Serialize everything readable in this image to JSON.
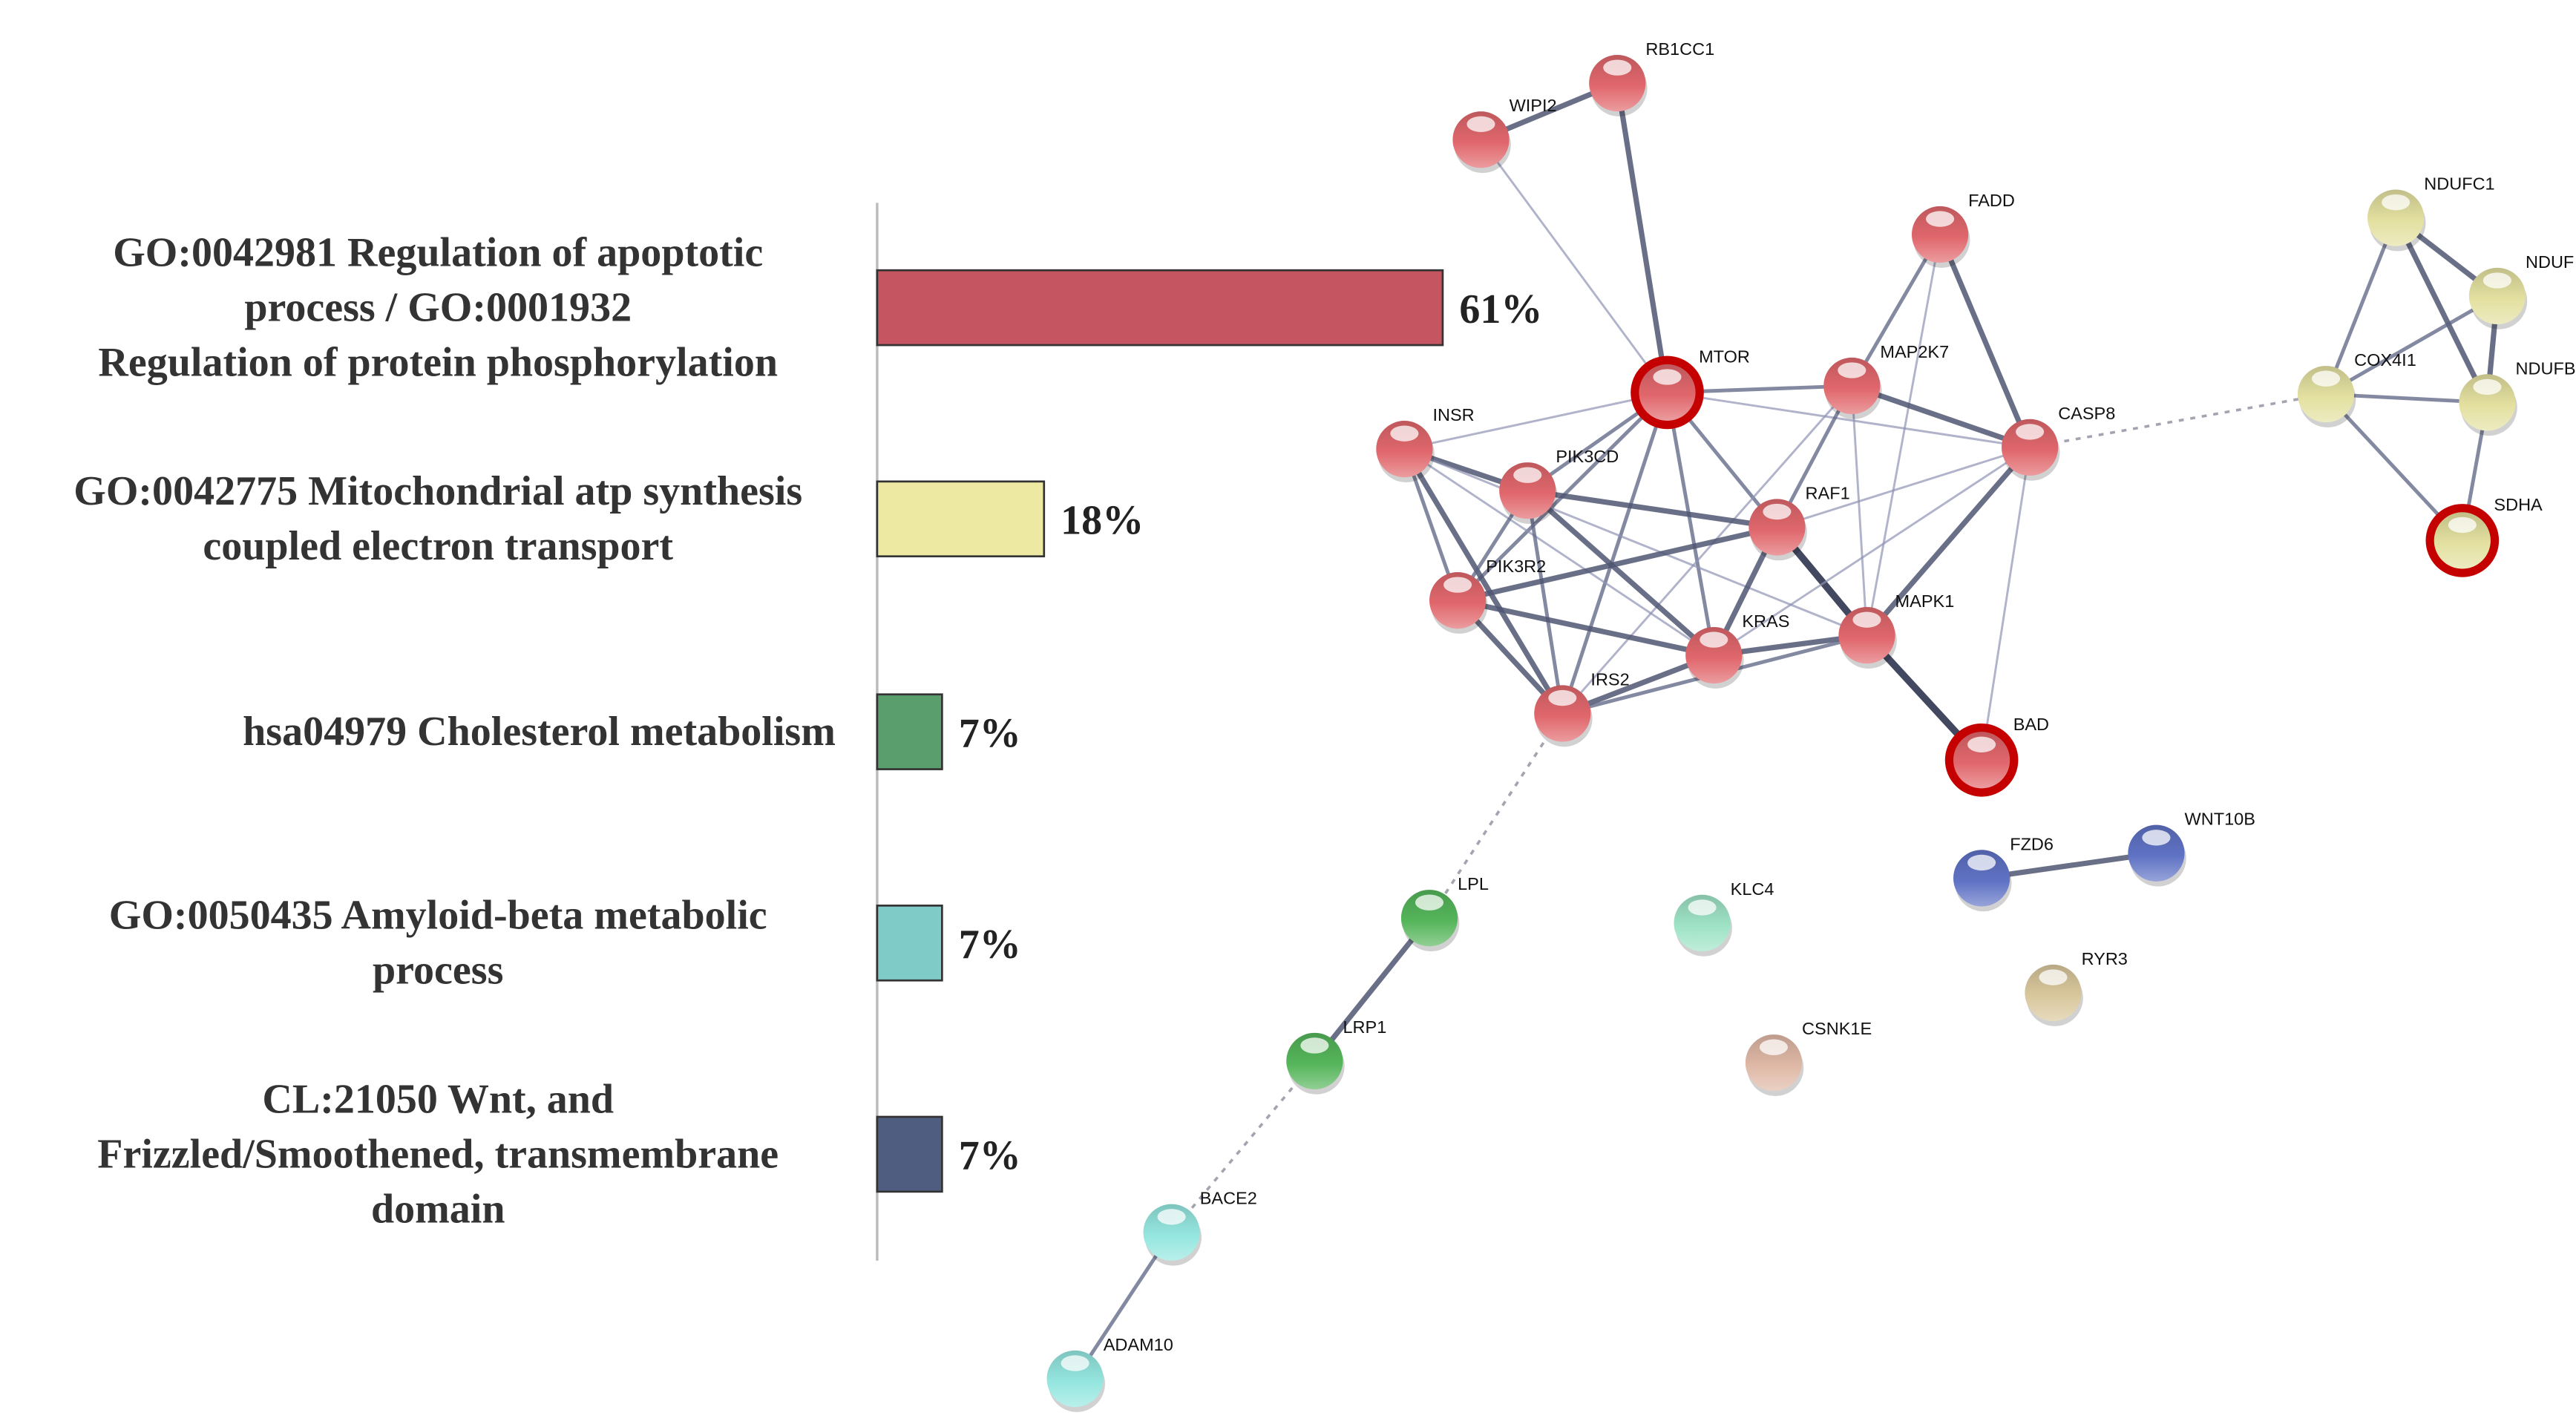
{
  "chart_data": {
    "type": "bar",
    "orientation": "horizontal",
    "categories": [
      {
        "lines": [
          "GO:0042981 Regulation of apoptotic",
          "process / GO:0001932",
          "Regulation of protein phosphorylation"
        ],
        "value": 61,
        "label": "61%",
        "color": "#c55560"
      },
      {
        "lines": [
          "GO:0042775 Mitochondrial atp synthesis",
          "coupled electron transport"
        ],
        "value": 18,
        "label": "18%",
        "color": "#ede9a3"
      },
      {
        "lines": [
          "hsa04979 Cholesterol metabolism"
        ],
        "value": 7,
        "label": "7%",
        "color": "#5a9e6e"
      },
      {
        "lines": [
          "GO:0050435 Amyloid-beta metabolic",
          "process"
        ],
        "value": 7,
        "label": "7%",
        "color": "#7ecbc7"
      },
      {
        "lines": [
          "CL:21050 Wnt, and",
          "Frizzled/Smoothened, transmembrane",
          "domain"
        ],
        "value": 7,
        "label": "7%",
        "color": "#4f5e80"
      }
    ],
    "xlim": [
      0,
      61
    ],
    "grid": false
  },
  "network": {
    "nodes": [
      {
        "id": "RB1CC1",
        "color": "#e0676c"
      },
      {
        "id": "WIPI2",
        "color": "#e0676c"
      },
      {
        "id": "FADD",
        "color": "#e0676c"
      },
      {
        "id": "MTOR",
        "color": "#e0676c",
        "highlight": true
      },
      {
        "id": "MAP2K7",
        "color": "#e0676c"
      },
      {
        "id": "INSR",
        "color": "#e0676c"
      },
      {
        "id": "PIK3CD",
        "color": "#e0676c"
      },
      {
        "id": "CASP8",
        "color": "#e0676c"
      },
      {
        "id": "RAF1",
        "color": "#e0676c"
      },
      {
        "id": "PIK3R2",
        "color": "#e0676c"
      },
      {
        "id": "KRAS",
        "color": "#e0676c"
      },
      {
        "id": "MAPK1",
        "color": "#e0676c"
      },
      {
        "id": "IRS2",
        "color": "#e0676c"
      },
      {
        "id": "BAD",
        "color": "#e0676c",
        "highlight": true
      },
      {
        "id": "NDUFC1",
        "color": "#e3e0a0"
      },
      {
        "id": "NDUF",
        "color": "#e3e0a0"
      },
      {
        "id": "NDUFB",
        "color": "#e3e0a0"
      },
      {
        "id": "COX4I1",
        "color": "#e3e0a0"
      },
      {
        "id": "SDHA",
        "color": "#e3e0a0",
        "highlight": true
      },
      {
        "id": "FZD6",
        "color": "#5f72c4"
      },
      {
        "id": "WNT10B",
        "color": "#5f72c4"
      },
      {
        "id": "LPL",
        "color": "#55b55a"
      },
      {
        "id": "KLC4",
        "color": "#9ee3c6"
      },
      {
        "id": "RYR3",
        "color": "#d9c79c"
      },
      {
        "id": "CSNK1E",
        "color": "#dfb8a6"
      },
      {
        "id": "LRP1",
        "color": "#55b55a"
      },
      {
        "id": "BACE2",
        "color": "#94e6df"
      },
      {
        "id": "ADAM10",
        "color": "#94e6df"
      }
    ],
    "edges": [
      [
        "WIPI2",
        "RB1CC1",
        "s"
      ],
      [
        "WIPI2",
        "MTOR",
        "w"
      ],
      [
        "RB1CC1",
        "MTOR",
        "s"
      ],
      [
        "FADD",
        "MAP2K7",
        "m"
      ],
      [
        "FADD",
        "CASP8",
        "s"
      ],
      [
        "FADD",
        "MAPK1",
        "w"
      ],
      [
        "MTOR",
        "MAP2K7",
        "m"
      ],
      [
        "MTOR",
        "CASP8",
        "w"
      ],
      [
        "MTOR",
        "INSR",
        "w"
      ],
      [
        "MTOR",
        "PIK3CD",
        "m"
      ],
      [
        "MTOR",
        "PIK3R2",
        "m"
      ],
      [
        "MTOR",
        "IRS2",
        "m"
      ],
      [
        "MTOR",
        "KRAS",
        "m"
      ],
      [
        "MTOR",
        "RAF1",
        "m"
      ],
      [
        "MAP2K7",
        "CASP8",
        "s"
      ],
      [
        "MAP2K7",
        "RAF1",
        "m"
      ],
      [
        "MAP2K7",
        "MAPK1",
        "w"
      ],
      [
        "MAP2K7",
        "IRS2",
        "w"
      ],
      [
        "INSR",
        "PIK3CD",
        "s"
      ],
      [
        "INSR",
        "PIK3R2",
        "m"
      ],
      [
        "INSR",
        "IRS2",
        "s"
      ],
      [
        "INSR",
        "KRAS",
        "w"
      ],
      [
        "INSR",
        "MAPK1",
        "w"
      ],
      [
        "PIK3CD",
        "PIK3R2",
        "m"
      ],
      [
        "PIK3CD",
        "IRS2",
        "m"
      ],
      [
        "PIK3CD",
        "KRAS",
        "s"
      ],
      [
        "PIK3CD",
        "RAF1",
        "s"
      ],
      [
        "PIK3R2",
        "RAF1",
        "s"
      ],
      [
        "PIK3R2",
        "KRAS",
        "s"
      ],
      [
        "PIK3R2",
        "IRS2",
        "s"
      ],
      [
        "RAF1",
        "KRAS",
        "s"
      ],
      [
        "RAF1",
        "MAPK1",
        "x"
      ],
      [
        "RAF1",
        "CASP8",
        "w"
      ],
      [
        "KRAS",
        "MAPK1",
        "s"
      ],
      [
        "KRAS",
        "IRS2",
        "s"
      ],
      [
        "IRS2",
        "MAPK1",
        "m"
      ],
      [
        "CASP8",
        "MAPK1",
        "s"
      ],
      [
        "CASP8",
        "KRAS",
        "w"
      ],
      [
        "CASP8",
        "BAD",
        "w"
      ],
      [
        "MAPK1",
        "BAD",
        "x"
      ],
      [
        "CASP8",
        "COX4I1",
        "d"
      ],
      [
        "IRS2",
        "LPL",
        "d"
      ],
      [
        "NDUFC1",
        "NDUF",
        "s"
      ],
      [
        "NDUFC1",
        "NDUFB",
        "s"
      ],
      [
        "NDUFC1",
        "COX4I1",
        "m"
      ],
      [
        "NDUF",
        "NDUFB",
        "s"
      ],
      [
        "NDUF",
        "COX4I1",
        "m"
      ],
      [
        "COX4I1",
        "NDUFB",
        "m"
      ],
      [
        "COX4I1",
        "SDHA",
        "m"
      ],
      [
        "NDUFB",
        "SDHA",
        "m"
      ],
      [
        "FZD6",
        "WNT10B",
        "s"
      ],
      [
        "LPL",
        "LRP1",
        "s"
      ],
      [
        "LRP1",
        "BACE2",
        "d"
      ],
      [
        "BACE2",
        "ADAM10",
        "m"
      ]
    ]
  }
}
